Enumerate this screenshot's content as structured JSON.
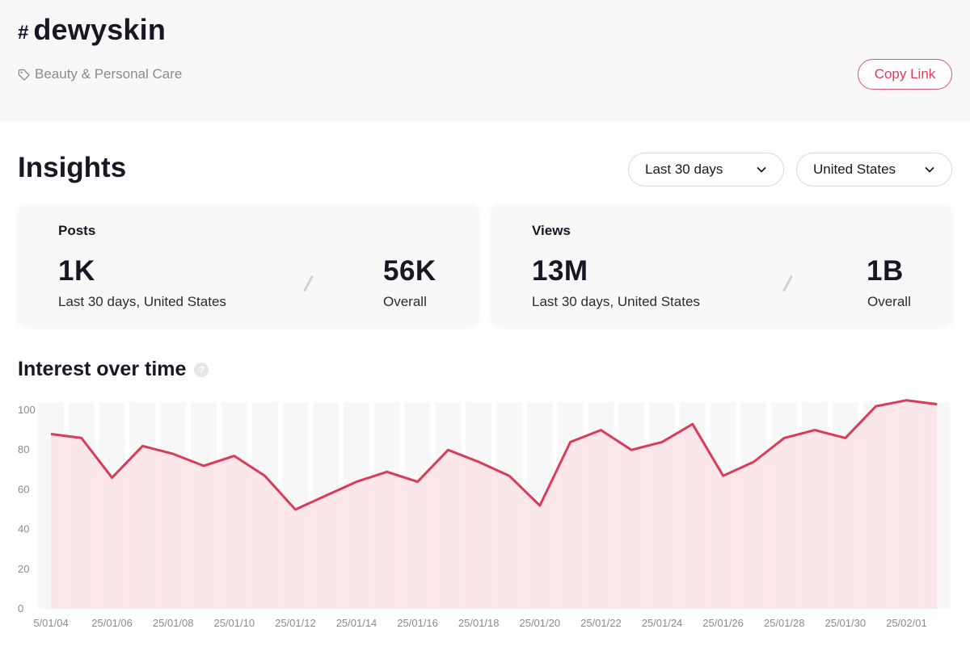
{
  "header": {
    "hash_symbol": "#",
    "hashtag": "dewyskin",
    "category": "Beauty & Personal Care",
    "copy_link_label": "Copy Link"
  },
  "insights": {
    "title": "Insights",
    "period_select": "Last 30 days",
    "region_select": "United States",
    "cards": {
      "posts": {
        "title": "Posts",
        "recent_value": "1K",
        "recent_label": "Last 30 days, United States",
        "overall_value": "56K",
        "overall_label": "Overall"
      },
      "views": {
        "title": "Views",
        "recent_value": "13M",
        "recent_label": "Last 30 days, United States",
        "overall_value": "1B",
        "overall_label": "Overall"
      }
    }
  },
  "interest": {
    "title": "Interest over time",
    "help_icon": "question-mark"
  },
  "colors": {
    "accent": "#e03a5a",
    "line": "#d93c58",
    "fill": "#fbe3e7"
  },
  "chart_data": {
    "type": "area",
    "title": "Interest over time",
    "xlabel": "",
    "ylabel": "",
    "ylim": [
      0,
      100
    ],
    "yticks": [
      0,
      20,
      40,
      60,
      80,
      100
    ],
    "grid": false,
    "x": [
      "25/01/04",
      "25/01/05",
      "25/01/06",
      "25/01/07",
      "25/01/08",
      "25/01/09",
      "25/01/10",
      "25/01/11",
      "25/01/12",
      "25/01/13",
      "25/01/14",
      "25/01/15",
      "25/01/16",
      "25/01/17",
      "25/01/18",
      "25/01/19",
      "25/01/20",
      "25/01/21",
      "25/01/22",
      "25/01/23",
      "25/01/24",
      "25/01/25",
      "25/01/26",
      "25/01/27",
      "25/01/28",
      "25/01/29",
      "25/01/30",
      "25/01/31",
      "25/02/01",
      "25/02/02"
    ],
    "xtick_labels": [
      "5/01/04",
      "25/01/06",
      "25/01/08",
      "25/01/10",
      "25/01/12",
      "25/01/14",
      "25/01/16",
      "25/01/18",
      "25/01/20",
      "25/01/22",
      "25/01/24",
      "25/01/26",
      "25/01/28",
      "25/01/30",
      "25/02/01"
    ],
    "values": [
      88,
      86,
      66,
      82,
      78,
      72,
      77,
      67,
      50,
      57,
      64,
      69,
      64,
      80,
      74,
      67,
      52,
      84,
      90,
      80,
      84,
      93,
      67,
      74,
      86,
      90,
      86,
      102,
      105,
      103
    ]
  }
}
